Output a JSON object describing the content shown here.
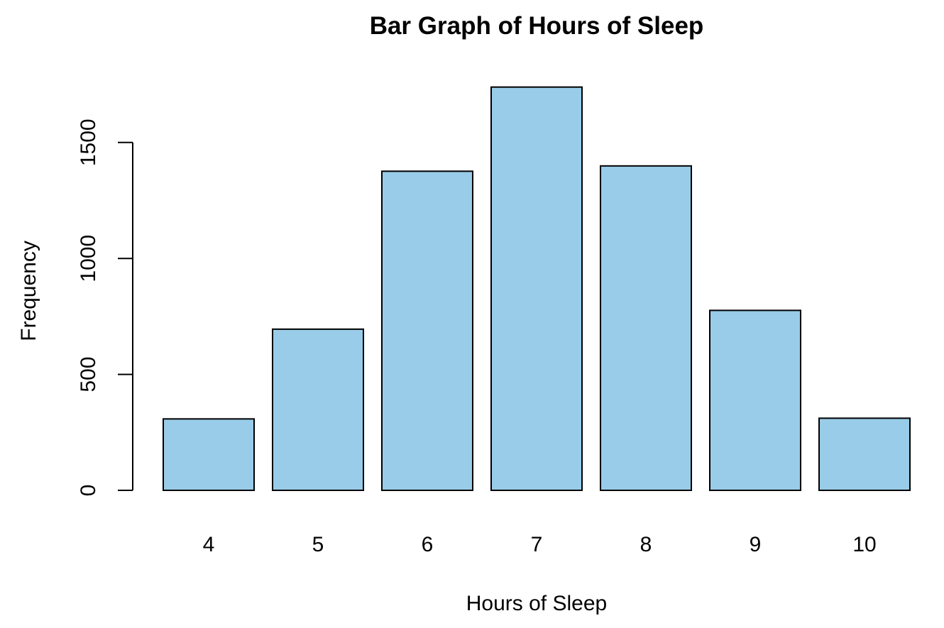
{
  "chart_data": {
    "type": "bar",
    "title": "Bar Graph of Hours of Sleep",
    "xlabel": "Hours of Sleep",
    "ylabel": "Frequency",
    "categories": [
      "4",
      "5",
      "6",
      "7",
      "8",
      "9",
      "10"
    ],
    "values": [
      308,
      695,
      1376,
      1739,
      1399,
      776,
      311
    ],
    "ylim": [
      0,
      1739
    ],
    "yticks": [
      0,
      500,
      1000,
      1500
    ],
    "ytick_labels": [
      "0",
      "500",
      "1000",
      "1500"
    ],
    "bar_color": "#99cce8",
    "border_color": "#000000",
    "grid": false
  }
}
